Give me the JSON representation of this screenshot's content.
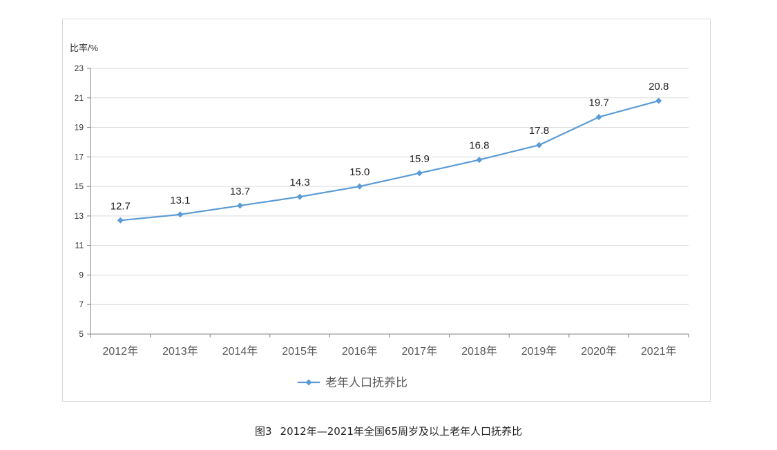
{
  "caption": {
    "figure_number": "图3",
    "title": "2012年—2021年全国65周岁及以上老年人口抚养比"
  },
  "colors": {
    "series": "#5b9bd5",
    "grid": "#d9d9d9",
    "axis": "#808080",
    "text": "#333333"
  },
  "chart_data": {
    "type": "line",
    "title": "",
    "xlabel": "",
    "ylabel": "比率/%",
    "ylim": [
      5,
      23
    ],
    "yticks": [
      5,
      7,
      9,
      11,
      13,
      15,
      17,
      19,
      21,
      23
    ],
    "grid": true,
    "legend_position": "bottom",
    "categories": [
      "2012年",
      "2013年",
      "2014年",
      "2015年",
      "2016年",
      "2017年",
      "2018年",
      "2019年",
      "2020年",
      "2021年"
    ],
    "series": [
      {
        "name": "老年人口抚养比",
        "values": [
          12.7,
          13.1,
          13.7,
          14.3,
          15.0,
          15.9,
          16.8,
          17.8,
          19.7,
          20.8
        ],
        "labels": [
          "12.7",
          "13.1",
          "13.7",
          "14.3",
          "15.0",
          "15.9",
          "16.8",
          "17.8",
          "19.7",
          "20.8"
        ],
        "marker": "diamond"
      }
    ]
  }
}
